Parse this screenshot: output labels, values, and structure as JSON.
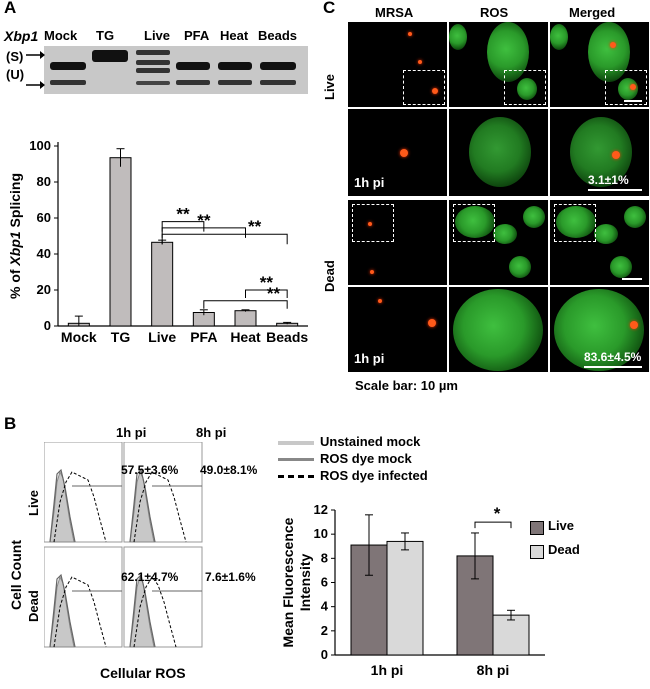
{
  "panelA": {
    "label": "A",
    "gel": {
      "gene": "Xbp1",
      "lanes": [
        "Mock",
        "TG",
        "Live",
        "PFA",
        "Heat",
        "Beads"
      ],
      "band_labels": [
        "(S)",
        "(U)"
      ]
    }
  },
  "panelB": {
    "label": "B",
    "col_headers": [
      "1h pi",
      "8h pi"
    ],
    "row_labels": [
      "Live",
      "Dead"
    ],
    "percentages": [
      "57.5±3.6%",
      "49.0±8.1%",
      "62.1±4.7%",
      "7.6±1.6%"
    ],
    "ylabel": "Cell Count",
    "xlabel": "Cellular ROS",
    "legend": [
      "Unstained mock",
      "ROS dye mock",
      "ROS dye infected"
    ]
  },
  "panelC": {
    "label": "C",
    "col_headers": [
      "MRSA",
      "ROS",
      "Merged"
    ],
    "row_labels": [
      "Live",
      "Dead"
    ],
    "timepoint_label": "1h pi",
    "quant": [
      "3.1±1%",
      "83.6±4.5%"
    ],
    "scale_caption": "Scale bar: 10 µm"
  },
  "chart_data": [
    {
      "type": "bar",
      "ylabel_prefix": "% of ",
      "ylabel_italic": "Xbp1",
      "ylabel_suffix": " Splicing",
      "categories": [
        "Mock",
        "TG",
        "Live",
        "PFA",
        "Heat",
        "Beads"
      ],
      "values": [
        1.5,
        93.5,
        46.5,
        7.5,
        8.5,
        1.5
      ],
      "errors": [
        4,
        5,
        1.2,
        1.5,
        0.5,
        0.5
      ],
      "ylim": [
        0,
        100
      ],
      "yticks": [
        0,
        20,
        40,
        60,
        80,
        100
      ],
      "significance": [
        {
          "from": 2,
          "to": 3,
          "label": "**"
        },
        {
          "from": 2,
          "to": 4,
          "label": "**"
        },
        {
          "from": 2,
          "to": 5,
          "label": "**"
        },
        {
          "from": 4,
          "to": 5,
          "label": "**"
        },
        {
          "from": 3,
          "to": 5,
          "label": "**"
        }
      ]
    },
    {
      "type": "bar",
      "ylabel": "Mean Fluorescence Intensity",
      "categories": [
        "1h pi",
        "8h pi"
      ],
      "series": [
        {
          "name": "Live",
          "color": "#7f7577",
          "values": [
            9.1,
            8.2
          ],
          "errors": [
            2.5,
            1.9
          ]
        },
        {
          "name": "Dead",
          "color": "#d9d9d9",
          "values": [
            9.4,
            3.3
          ],
          "errors": [
            0.7,
            0.4
          ]
        }
      ],
      "ylim": [
        0,
        12
      ],
      "yticks": [
        0,
        2,
        4,
        6,
        8,
        10,
        12
      ],
      "significance": [
        {
          "category": 1,
          "label": "*"
        }
      ]
    }
  ]
}
